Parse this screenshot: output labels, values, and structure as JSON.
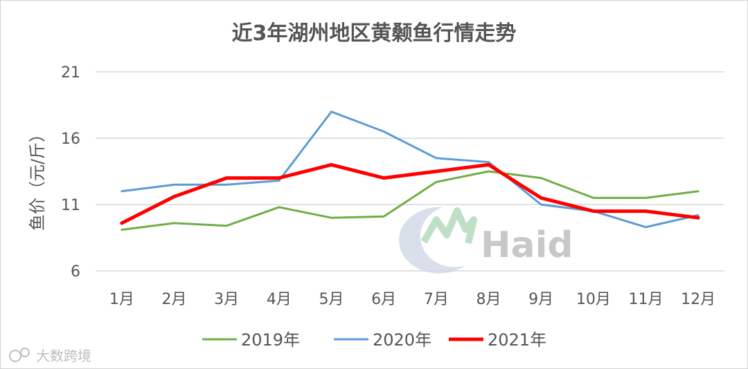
{
  "chart_data": {
    "type": "line",
    "title": "近3年湖州地区黄颡鱼行情走势",
    "ylabel": "鱼价（元/斤）",
    "xlabel": "",
    "categories": [
      "1月",
      "2月",
      "3月",
      "4月",
      "5月",
      "6月",
      "7月",
      "8月",
      "9月",
      "10月",
      "11月",
      "12月"
    ],
    "ylim": [
      6,
      21
    ],
    "yticks": [
      6,
      11,
      16,
      21
    ],
    "grid": true,
    "legend_position": "bottom",
    "series": [
      {
        "name": "2019年",
        "color": "#70ad47",
        "values": [
          9.1,
          9.6,
          9.4,
          10.8,
          10.0,
          10.1,
          12.7,
          13.5,
          13.0,
          11.5,
          11.5,
          12.0
        ]
      },
      {
        "name": "2020年",
        "color": "#5b9bd5",
        "values": [
          12.0,
          12.5,
          12.5,
          12.8,
          18.0,
          16.5,
          14.5,
          14.2,
          11.0,
          10.5,
          9.3,
          10.2
        ]
      },
      {
        "name": "2021年",
        "color": "#ff0000",
        "values": [
          9.6,
          11.6,
          13.0,
          13.0,
          14.0,
          13.0,
          13.5,
          14.0,
          11.5,
          10.5,
          10.5,
          10.0
        ]
      }
    ]
  },
  "watermark": {
    "text": "Haid"
  },
  "corner_label": {
    "text": "大数跨境"
  }
}
